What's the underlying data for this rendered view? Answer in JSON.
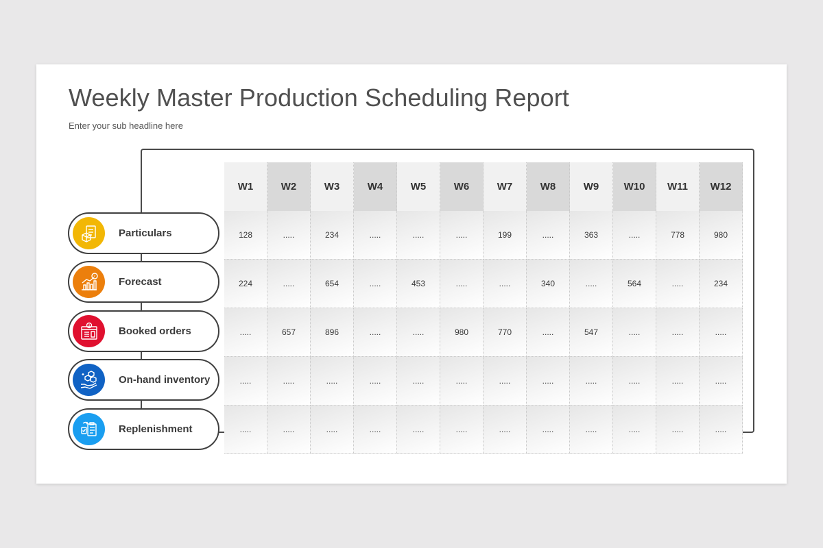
{
  "slide": {
    "title": "Weekly Master Production Scheduling Report",
    "subtitle": "Enter your sub headline here"
  },
  "table": {
    "columns": [
      "W1",
      "W2",
      "W3",
      "W4",
      "W5",
      "W6",
      "W7",
      "W8",
      "W9",
      "W10",
      "W11",
      "W12"
    ],
    "rows": [
      {
        "label": "Particulars",
        "icon": "boxes-checklist-icon",
        "color": "#f2b705",
        "values": [
          "128",
          ".....",
          "234",
          ".....",
          ".....",
          ".....",
          "199",
          ".....",
          "363",
          ".....",
          "778",
          "980"
        ]
      },
      {
        "label": "Forecast",
        "icon": "forecast-chart-icon",
        "color": "#ec7f0c",
        "values": [
          "224",
          ".....",
          "654",
          ".....",
          "453",
          ".....",
          ".....",
          "340",
          ".....",
          "564",
          ".....",
          "234"
        ]
      },
      {
        "label": "Booked orders",
        "icon": "booked-orders-icon",
        "color": "#e0102f",
        "values": [
          ".....",
          "657",
          "896",
          ".....",
          ".....",
          "980",
          "770",
          ".....",
          "547",
          ".....",
          ".....",
          "....."
        ]
      },
      {
        "label": "On-hand inventory",
        "icon": "inventory-hand-icon",
        "color": "#1062c4",
        "values": [
          ".....",
          ".....",
          ".....",
          ".....",
          ".....",
          ".....",
          ".....",
          ".....",
          ".....",
          ".....",
          ".....",
          "....."
        ]
      },
      {
        "label": "Replenishment",
        "icon": "replenishment-clipboard-icon",
        "color": "#1a9ef0",
        "values": [
          ".....",
          ".....",
          ".....",
          ".....",
          ".....",
          ".....",
          ".....",
          ".....",
          ".....",
          ".....",
          ".....",
          "....."
        ]
      }
    ]
  }
}
